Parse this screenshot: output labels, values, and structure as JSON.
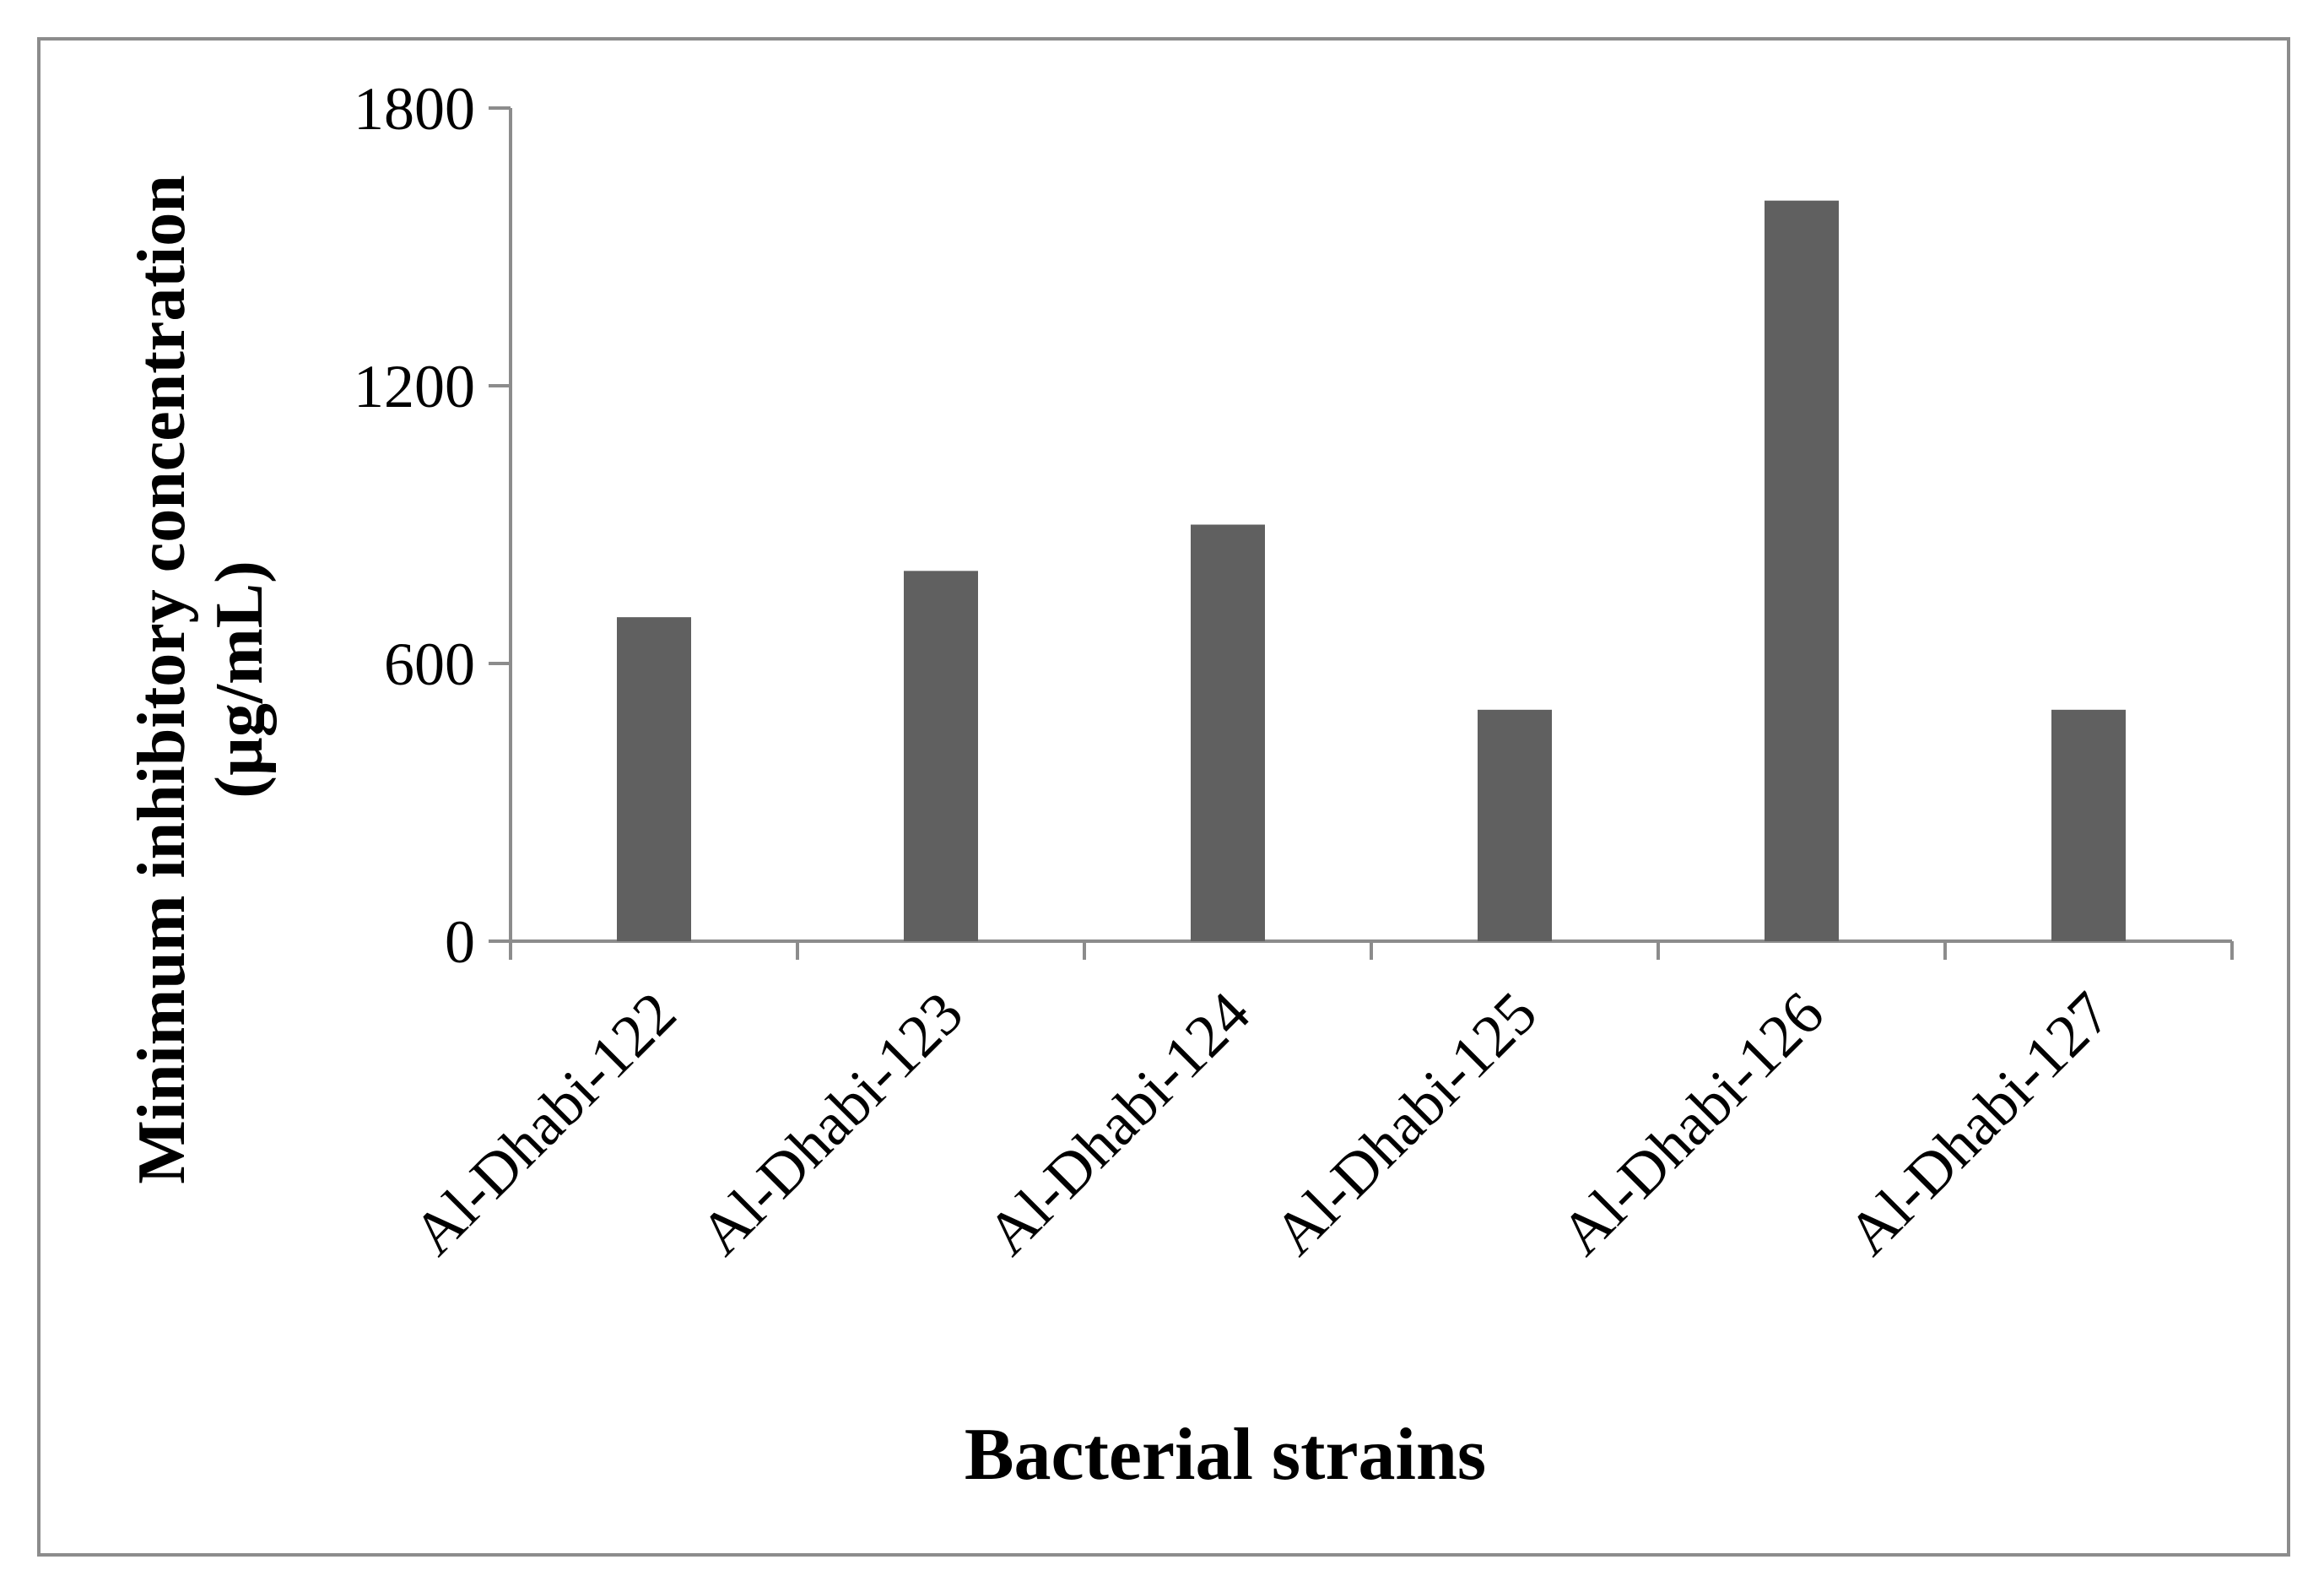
{
  "chart_data": {
    "type": "bar",
    "title": "",
    "xlabel": "Bacterial strains",
    "ylabel_line1": "Minimum inhibitory  concentration",
    "ylabel_line2": "(µg/mL)",
    "categories": [
      "Al-Dhabi-122",
      "Al-Dhabi-123",
      "Al-Dhabi-124",
      "Al-Dhabi-125",
      "Al-Dhabi-126",
      "Al-Dhabi-127"
    ],
    "values": [
      700,
      800,
      900,
      500,
      1600,
      500
    ],
    "ylim": [
      0,
      1800
    ],
    "yticks": [
      "0",
      "600",
      "1200",
      "1800"
    ],
    "bar_color": "#606060",
    "axis_color": "#8c8c8c",
    "grid": false,
    "legend": "none"
  }
}
